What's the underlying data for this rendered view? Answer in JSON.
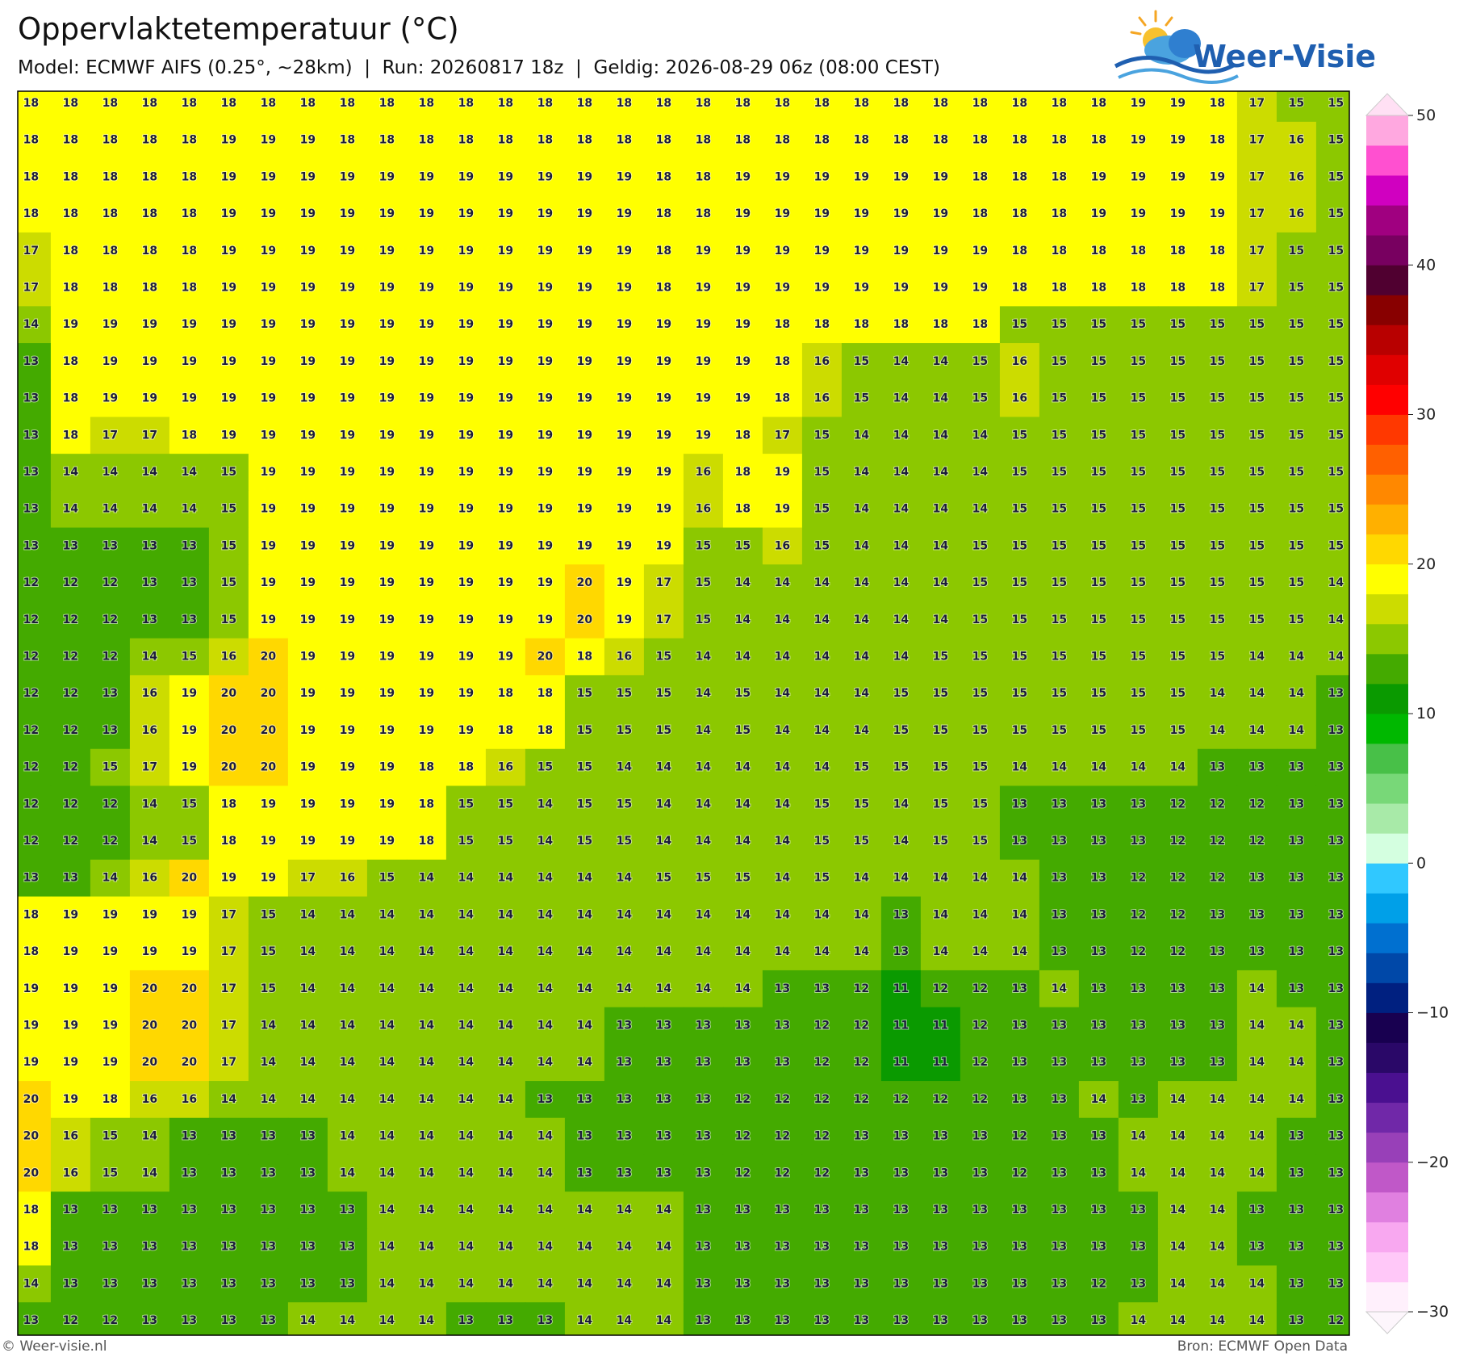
{
  "title": "Oppervlaktetemperatuur (°C)",
  "subtitle": "Model: ECMWF AIFS (0.25°, ~28km)  |  Run: 20260817 18z  |  Geldig: 2026-08-29 06z (08:00 CEST)",
  "brand": "Weer-Visie",
  "credit": "© Weer-visie.nl",
  "source": "Bron: ECMWF Open Data",
  "map": {
    "rows": [
      [
        18,
        18,
        18,
        18,
        18,
        18,
        18,
        18,
        18,
        18,
        18,
        18,
        18,
        18,
        18,
        18,
        18,
        18,
        18,
        18,
        18,
        18,
        18,
        18,
        18,
        18,
        18,
        18,
        19,
        19,
        18,
        17,
        15,
        15
      ],
      [
        18,
        18,
        18,
        18,
        18,
        19,
        19,
        19,
        18,
        18,
        18,
        18,
        18,
        18,
        18,
        18,
        18,
        18,
        18,
        18,
        18,
        18,
        18,
        18,
        18,
        18,
        18,
        18,
        19,
        19,
        18,
        17,
        16,
        15
      ],
      [
        18,
        18,
        18,
        18,
        18,
        19,
        19,
        19,
        19,
        19,
        19,
        19,
        19,
        19,
        19,
        19,
        18,
        18,
        19,
        19,
        19,
        19,
        19,
        19,
        18,
        18,
        18,
        19,
        19,
        19,
        19,
        17,
        16,
        15
      ],
      [
        18,
        18,
        18,
        18,
        18,
        19,
        19,
        19,
        19,
        19,
        19,
        19,
        19,
        19,
        19,
        19,
        18,
        18,
        19,
        19,
        19,
        19,
        19,
        19,
        18,
        18,
        18,
        19,
        19,
        19,
        19,
        17,
        16,
        15
      ],
      [
        17,
        18,
        18,
        18,
        18,
        19,
        19,
        19,
        19,
        19,
        19,
        19,
        19,
        19,
        19,
        19,
        18,
        19,
        19,
        19,
        19,
        19,
        19,
        19,
        19,
        18,
        18,
        18,
        18,
        18,
        18,
        17,
        15,
        15
      ],
      [
        17,
        18,
        18,
        18,
        18,
        19,
        19,
        19,
        19,
        19,
        19,
        19,
        19,
        19,
        19,
        19,
        18,
        19,
        19,
        19,
        19,
        19,
        19,
        19,
        19,
        18,
        18,
        18,
        18,
        18,
        18,
        17,
        15,
        15
      ],
      [
        14,
        19,
        19,
        19,
        19,
        19,
        19,
        19,
        19,
        19,
        19,
        19,
        19,
        19,
        19,
        19,
        19,
        19,
        19,
        18,
        18,
        18,
        18,
        18,
        18,
        15,
        15,
        15,
        15,
        15,
        15,
        15,
        15,
        15
      ],
      [
        13,
        18,
        19,
        19,
        19,
        19,
        19,
        19,
        19,
        19,
        19,
        19,
        19,
        19,
        19,
        19,
        19,
        19,
        19,
        18,
        16,
        15,
        14,
        14,
        15,
        16,
        15,
        15,
        15,
        15,
        15,
        15,
        15,
        15
      ],
      [
        13,
        18,
        19,
        19,
        19,
        19,
        19,
        19,
        19,
        19,
        19,
        19,
        19,
        19,
        19,
        19,
        19,
        19,
        19,
        18,
        16,
        15,
        14,
        14,
        15,
        16,
        15,
        15,
        15,
        15,
        15,
        15,
        15,
        15
      ],
      [
        13,
        18,
        17,
        17,
        18,
        19,
        19,
        19,
        19,
        19,
        19,
        19,
        19,
        19,
        19,
        19,
        19,
        19,
        18,
        17,
        15,
        14,
        14,
        14,
        14,
        15,
        15,
        15,
        15,
        15,
        15,
        15,
        15,
        15
      ],
      [
        13,
        14,
        14,
        14,
        14,
        15,
        19,
        19,
        19,
        19,
        19,
        19,
        19,
        19,
        19,
        19,
        19,
        16,
        18,
        19,
        15,
        14,
        14,
        14,
        14,
        15,
        15,
        15,
        15,
        15,
        15,
        15,
        15,
        15
      ],
      [
        13,
        14,
        14,
        14,
        14,
        15,
        19,
        19,
        19,
        19,
        19,
        19,
        19,
        19,
        19,
        19,
        19,
        16,
        18,
        19,
        15,
        14,
        14,
        14,
        14,
        15,
        15,
        15,
        15,
        15,
        15,
        15,
        15,
        15
      ],
      [
        13,
        13,
        13,
        13,
        13,
        15,
        19,
        19,
        19,
        19,
        19,
        19,
        19,
        19,
        19,
        19,
        19,
        15,
        15,
        16,
        15,
        14,
        14,
        14,
        15,
        15,
        15,
        15,
        15,
        15,
        15,
        15,
        15,
        15
      ],
      [
        12,
        12,
        12,
        13,
        13,
        15,
        19,
        19,
        19,
        19,
        19,
        19,
        19,
        19,
        20,
        19,
        17,
        15,
        14,
        14,
        14,
        14,
        14,
        14,
        15,
        15,
        15,
        15,
        15,
        15,
        15,
        15,
        15,
        14
      ],
      [
        12,
        12,
        12,
        13,
        13,
        15,
        19,
        19,
        19,
        19,
        19,
        19,
        19,
        19,
        20,
        19,
        17,
        15,
        14,
        14,
        14,
        14,
        14,
        14,
        15,
        15,
        15,
        15,
        15,
        15,
        15,
        15,
        15,
        14
      ],
      [
        12,
        12,
        12,
        14,
        15,
        16,
        20,
        19,
        19,
        19,
        19,
        19,
        19,
        20,
        18,
        16,
        15,
        14,
        14,
        14,
        14,
        14,
        14,
        15,
        15,
        15,
        15,
        15,
        15,
        15,
        15,
        14,
        14,
        14
      ],
      [
        12,
        12,
        13,
        16,
        19,
        20,
        20,
        19,
        19,
        19,
        19,
        19,
        18,
        18,
        15,
        15,
        15,
        14,
        15,
        14,
        14,
        14,
        15,
        15,
        15,
        15,
        15,
        15,
        15,
        15,
        14,
        14,
        14,
        13
      ],
      [
        12,
        12,
        13,
        16,
        19,
        20,
        20,
        19,
        19,
        19,
        19,
        19,
        18,
        18,
        15,
        15,
        15,
        14,
        15,
        14,
        14,
        14,
        15,
        15,
        15,
        15,
        15,
        15,
        15,
        15,
        14,
        14,
        14,
        13
      ],
      [
        12,
        12,
        15,
        17,
        19,
        20,
        20,
        19,
        19,
        19,
        18,
        18,
        16,
        15,
        15,
        14,
        14,
        14,
        14,
        14,
        14,
        15,
        15,
        15,
        15,
        14,
        14,
        14,
        14,
        14,
        13,
        13,
        13,
        13
      ],
      [
        12,
        12,
        12,
        14,
        15,
        18,
        19,
        19,
        19,
        19,
        18,
        15,
        15,
        14,
        15,
        15,
        14,
        14,
        14,
        14,
        15,
        15,
        14,
        15,
        15,
        13,
        13,
        13,
        13,
        12,
        12,
        12,
        13,
        13
      ],
      [
        12,
        12,
        12,
        14,
        15,
        18,
        19,
        19,
        19,
        19,
        18,
        15,
        15,
        14,
        15,
        15,
        14,
        14,
        14,
        14,
        15,
        15,
        14,
        15,
        15,
        13,
        13,
        13,
        13,
        12,
        12,
        12,
        13,
        13
      ],
      [
        13,
        13,
        14,
        16,
        20,
        19,
        19,
        17,
        16,
        15,
        14,
        14,
        14,
        14,
        14,
        14,
        15,
        15,
        15,
        14,
        15,
        14,
        14,
        14,
        14,
        14,
        13,
        13,
        12,
        12,
        12,
        13,
        13,
        13
      ],
      [
        18,
        19,
        19,
        19,
        19,
        17,
        15,
        14,
        14,
        14,
        14,
        14,
        14,
        14,
        14,
        14,
        14,
        14,
        14,
        14,
        14,
        14,
        13,
        14,
        14,
        14,
        13,
        13,
        12,
        12,
        13,
        13,
        13,
        13
      ],
      [
        18,
        19,
        19,
        19,
        19,
        17,
        15,
        14,
        14,
        14,
        14,
        14,
        14,
        14,
        14,
        14,
        14,
        14,
        14,
        14,
        14,
        14,
        13,
        14,
        14,
        14,
        13,
        13,
        12,
        12,
        13,
        13,
        13,
        13
      ],
      [
        19,
        19,
        19,
        20,
        20,
        17,
        15,
        14,
        14,
        14,
        14,
        14,
        14,
        14,
        14,
        14,
        14,
        14,
        14,
        13,
        13,
        12,
        11,
        12,
        12,
        13,
        14,
        13,
        13,
        13,
        13,
        14,
        13,
        13
      ],
      [
        19,
        19,
        19,
        20,
        20,
        17,
        14,
        14,
        14,
        14,
        14,
        14,
        14,
        14,
        14,
        13,
        13,
        13,
        13,
        13,
        12,
        12,
        11,
        11,
        12,
        13,
        13,
        13,
        13,
        13,
        13,
        14,
        14,
        13
      ],
      [
        19,
        19,
        19,
        20,
        20,
        17,
        14,
        14,
        14,
        14,
        14,
        14,
        14,
        14,
        14,
        13,
        13,
        13,
        13,
        13,
        12,
        12,
        11,
        11,
        12,
        13,
        13,
        13,
        13,
        13,
        13,
        14,
        14,
        13
      ],
      [
        20,
        19,
        18,
        16,
        16,
        14,
        14,
        14,
        14,
        14,
        14,
        14,
        14,
        13,
        13,
        13,
        13,
        13,
        12,
        12,
        12,
        12,
        12,
        12,
        12,
        13,
        13,
        14,
        13,
        14,
        14,
        14,
        14,
        13
      ],
      [
        20,
        16,
        15,
        14,
        13,
        13,
        13,
        13,
        14,
        14,
        14,
        14,
        14,
        14,
        13,
        13,
        13,
        13,
        12,
        12,
        12,
        13,
        13,
        13,
        13,
        12,
        13,
        13,
        14,
        14,
        14,
        14,
        13,
        13
      ],
      [
        20,
        16,
        15,
        14,
        13,
        13,
        13,
        13,
        14,
        14,
        14,
        14,
        14,
        14,
        13,
        13,
        13,
        13,
        12,
        12,
        12,
        13,
        13,
        13,
        13,
        12,
        13,
        13,
        14,
        14,
        14,
        14,
        13,
        13
      ],
      [
        18,
        13,
        13,
        13,
        13,
        13,
        13,
        13,
        13,
        14,
        14,
        14,
        14,
        14,
        14,
        14,
        14,
        13,
        13,
        13,
        13,
        13,
        13,
        13,
        13,
        13,
        13,
        13,
        13,
        14,
        14,
        13,
        13,
        13
      ],
      [
        18,
        13,
        13,
        13,
        13,
        13,
        13,
        13,
        13,
        14,
        14,
        14,
        14,
        14,
        14,
        14,
        14,
        13,
        13,
        13,
        13,
        13,
        13,
        13,
        13,
        13,
        13,
        13,
        13,
        14,
        14,
        13,
        13,
        13
      ],
      [
        14,
        13,
        13,
        13,
        13,
        13,
        13,
        13,
        13,
        14,
        14,
        14,
        14,
        14,
        14,
        14,
        14,
        13,
        13,
        13,
        13,
        13,
        13,
        13,
        13,
        13,
        13,
        12,
        13,
        14,
        14,
        14,
        13,
        13
      ],
      [
        13,
        12,
        12,
        13,
        13,
        13,
        13,
        14,
        14,
        14,
        14,
        13,
        13,
        13,
        14,
        14,
        14,
        13,
        13,
        13,
        13,
        13,
        13,
        13,
        13,
        13,
        13,
        13,
        14,
        14,
        14,
        14,
        13,
        12
      ]
    ]
  },
  "colorbar": {
    "lim": [
      -30,
      50
    ],
    "ticks": [
      {
        "value": -30,
        "label": "−30"
      },
      {
        "value": -20,
        "label": "−20"
      },
      {
        "value": -10,
        "label": "−10"
      },
      0,
      10,
      20,
      30,
      40,
      50
    ],
    "colors": [
      "#fff0fc",
      "#ffc8f8",
      "#f8a8f0",
      "#e080e0",
      "#c058c8",
      "#9840b8",
      "#7028a8",
      "#4a1090",
      "#2a0868",
      "#180050",
      "#002080",
      "#0048a8",
      "#0070d0",
      "#00a0e8",
      "#30c8ff",
      "#d4ffe0",
      "#a8eaa8",
      "#78d878",
      "#48c048",
      "#00b800",
      "#0a9a00",
      "#44aa00",
      "#8cc800",
      "#ccdc00",
      "#ffff00",
      "#ffd800",
      "#ffb000",
      "#ff8800",
      "#ff6000",
      "#ff3800",
      "#ff0000",
      "#e00000",
      "#b80000",
      "#880000",
      "#500030",
      "#780060",
      "#a00080",
      "#d000c0",
      "#ff50d0",
      "#ffa8e0"
    ],
    "under_color": "#fdf6fc",
    "over_color": "#ffe0f4"
  }
}
